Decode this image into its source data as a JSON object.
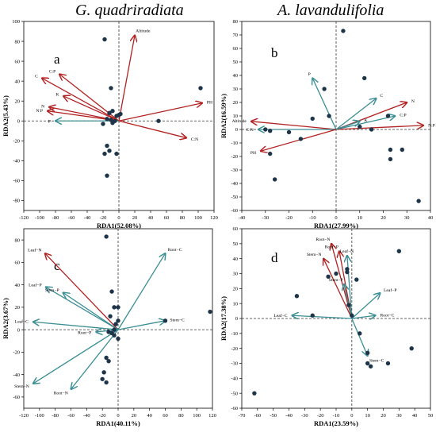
{
  "headers": {
    "left": "G. quadriradiata",
    "right": "A. lavandulifolia"
  },
  "colors": {
    "env_arrow": "#b22222",
    "trait_arrow": "#3a8e94",
    "point": "#1e3448",
    "axis": "#000000"
  },
  "chart_data": [
    {
      "type": "scatter",
      "panel_label": "a",
      "xlabel": "RDA1(52.08%)",
      "ylabel": "RDA2(5.43%)",
      "xlim": [
        -120,
        120
      ],
      "ylim": [
        -90,
        100
      ],
      "xticks": [
        -120,
        -100,
        -80,
        -60,
        -40,
        -20,
        0,
        20,
        40,
        60,
        80,
        100,
        120
      ],
      "yticks": [
        -80,
        -60,
        -40,
        -20,
        0,
        20,
        40,
        60,
        80,
        100
      ],
      "points": [
        [
          -18,
          82
        ],
        [
          -10,
          33
        ],
        [
          -8,
          10
        ],
        [
          -12,
          8
        ],
        [
          -3,
          5
        ],
        [
          0,
          6
        ],
        [
          -15,
          2
        ],
        [
          -10,
          1
        ],
        [
          -5,
          0
        ],
        [
          -8,
          -2
        ],
        [
          -20,
          -3
        ],
        [
          -15,
          -25
        ],
        [
          -12,
          -30
        ],
        [
          -18,
          -33
        ],
        [
          -3,
          -33
        ],
        [
          -15,
          -55
        ],
        [
          2,
          7
        ],
        [
          50,
          0
        ],
        [
          103,
          33
        ]
      ],
      "arrows": [
        {
          "label": "Altitude",
          "x": 20,
          "y": 86,
          "kind": "env"
        },
        {
          "label": "PH",
          "x": 105,
          "y": 18,
          "kind": "env"
        },
        {
          "label": "C:N",
          "x": 85,
          "y": -17,
          "kind": "env"
        },
        {
          "label": "C",
          "x": -97,
          "y": 43,
          "kind": "env"
        },
        {
          "label": "C:P",
          "x": -75,
          "y": 47,
          "kind": "env"
        },
        {
          "label": "K",
          "x": -70,
          "y": 25,
          "kind": "env"
        },
        {
          "label": "N",
          "x": -88,
          "y": 14,
          "kind": "env"
        },
        {
          "label": "N:P",
          "x": -90,
          "y": 10,
          "kind": "env"
        },
        {
          "label": "P",
          "x": -80,
          "y": 0,
          "kind": "trait"
        }
      ]
    },
    {
      "type": "scatter",
      "panel_label": "b",
      "xlabel": "RDA1(27.99%)",
      "ylabel": "RDA2(16.59%)",
      "xlim": [
        -40,
        40
      ],
      "ylim": [
        -60,
        80
      ],
      "xticks": [
        -40,
        -30,
        -20,
        -10,
        0,
        10,
        20,
        30,
        40
      ],
      "yticks": [
        -60,
        -50,
        -40,
        -30,
        -20,
        -10,
        0,
        10,
        20,
        30,
        40,
        50,
        60,
        70,
        80
      ],
      "points": [
        [
          3,
          73
        ],
        [
          -5,
          30
        ],
        [
          12,
          38
        ],
        [
          -30,
          0
        ],
        [
          -28,
          -1
        ],
        [
          -20,
          -2
        ],
        [
          -10,
          8
        ],
        [
          -3,
          10
        ],
        [
          10,
          2
        ],
        [
          15,
          0
        ],
        [
          22,
          10
        ],
        [
          -28,
          -18
        ],
        [
          -15,
          -7
        ],
        [
          23,
          -15
        ],
        [
          23,
          -22
        ],
        [
          28,
          -15
        ],
        [
          -26,
          -37
        ],
        [
          35,
          -53
        ]
      ],
      "arrows": [
        {
          "label": "P",
          "x": -10,
          "y": 38,
          "kind": "trait"
        },
        {
          "label": "C",
          "x": 17,
          "y": 23,
          "kind": "trait"
        },
        {
          "label": "N",
          "x": 30,
          "y": 20,
          "kind": "env"
        },
        {
          "label": "C:P",
          "x": 25,
          "y": 10,
          "kind": "trait"
        },
        {
          "label": "N:P",
          "x": 37,
          "y": 3,
          "kind": "env"
        },
        {
          "label": "K",
          "x": 10,
          "y": 6,
          "kind": "trait"
        },
        {
          "label": "Altitude",
          "x": -36,
          "y": 6,
          "kind": "env"
        },
        {
          "label": "C:N",
          "x": -33,
          "y": 0,
          "kind": "trait"
        },
        {
          "label": "PH",
          "x": -32,
          "y": -16,
          "kind": "env"
        }
      ]
    },
    {
      "type": "scatter",
      "panel_label": "c",
      "xlabel": "RDA1(40.11%)",
      "ylabel": "RDA2(3.67%)",
      "xlim": [
        -120,
        120
      ],
      "ylim": [
        -70,
        90
      ],
      "xticks": [
        -120,
        -100,
        -80,
        -60,
        -40,
        -20,
        0,
        20,
        40,
        60,
        80,
        100,
        120
      ],
      "yticks": [
        -60,
        -40,
        -20,
        0,
        20,
        40,
        60,
        80
      ],
      "points": [
        [
          -15,
          83
        ],
        [
          -8,
          34
        ],
        [
          -5,
          20
        ],
        [
          0,
          20
        ],
        [
          -10,
          12
        ],
        [
          0,
          8
        ],
        [
          -3,
          5
        ],
        [
          -5,
          0
        ],
        [
          -12,
          -2
        ],
        [
          -8,
          -3
        ],
        [
          -5,
          -5
        ],
        [
          0,
          -8
        ],
        [
          -15,
          -25
        ],
        [
          -12,
          -28
        ],
        [
          -18,
          -38
        ],
        [
          -20,
          -44
        ],
        [
          -15,
          -47
        ],
        [
          60,
          8
        ],
        [
          117,
          16
        ]
      ],
      "arrows": [
        {
          "label": "Leaf−N",
          "x": -93,
          "y": 68,
          "kind": "env"
        },
        {
          "label": "Root−C",
          "x": 60,
          "y": 68,
          "kind": "trait"
        },
        {
          "label": "Leaf−P",
          "x": -92,
          "y": 38,
          "kind": "trait"
        },
        {
          "label": "Stem−P",
          "x": -70,
          "y": 33,
          "kind": "trait"
        },
        {
          "label": "Leaf−C",
          "x": -108,
          "y": 7,
          "kind": "trait"
        },
        {
          "label": "Stem−C",
          "x": 60,
          "y": 8,
          "kind": "trait"
        },
        {
          "label": "Root−P",
          "x": -28,
          "y": -2,
          "kind": "trait"
        },
        {
          "label": "Stem−N",
          "x": -108,
          "y": -48,
          "kind": "trait"
        },
        {
          "label": "Root−N",
          "x": -60,
          "y": -53,
          "kind": "trait"
        }
      ]
    },
    {
      "type": "scatter",
      "panel_label": "d",
      "xlabel": "RDA1(23.59%)",
      "ylabel": "RDA2(17.38%)",
      "xlim": [
        -70,
        50
      ],
      "ylim": [
        -60,
        60
      ],
      "xticks": [
        -70,
        -60,
        -50,
        -40,
        -30,
        -20,
        -10,
        0,
        10,
        20,
        30,
        40,
        50
      ],
      "yticks": [
        -60,
        -50,
        -40,
        -30,
        -20,
        -10,
        0,
        10,
        20,
        30,
        40,
        50,
        60
      ],
      "points": [
        [
          -15,
          28
        ],
        [
          -3,
          33
        ],
        [
          -3,
          31
        ],
        [
          3,
          26
        ],
        [
          30,
          45
        ],
        [
          -35,
          15
        ],
        [
          -25,
          2
        ],
        [
          -2,
          9
        ],
        [
          0,
          2
        ],
        [
          5,
          -10
        ],
        [
          10,
          -23
        ],
        [
          10,
          -30
        ],
        [
          12,
          -32
        ],
        [
          23,
          -30
        ],
        [
          38,
          -20
        ],
        [
          -62,
          -50
        ],
        [
          -10,
          30
        ]
      ],
      "arrows": [
        {
          "label": "Root−N",
          "x": -13,
          "y": 50,
          "kind": "env"
        },
        {
          "label": "Root−P",
          "x": -8,
          "y": 45,
          "kind": "env"
        },
        {
          "label": "Leaf−N",
          "x": -3,
          "y": 42,
          "kind": "trait"
        },
        {
          "label": "Stem−N",
          "x": -18,
          "y": 40,
          "kind": "env"
        },
        {
          "label": "Stem−P",
          "x": -5,
          "y": 23,
          "kind": "trait"
        },
        {
          "label": "Leaf−P",
          "x": 18,
          "y": 17,
          "kind": "trait"
        },
        {
          "label": "Leaf−C",
          "x": -38,
          "y": 2,
          "kind": "trait"
        },
        {
          "label": "Root−C",
          "x": 15,
          "y": 2,
          "kind": "trait"
        },
        {
          "label": "Stem−C",
          "x": 10,
          "y": -25,
          "kind": "trait"
        }
      ]
    }
  ]
}
